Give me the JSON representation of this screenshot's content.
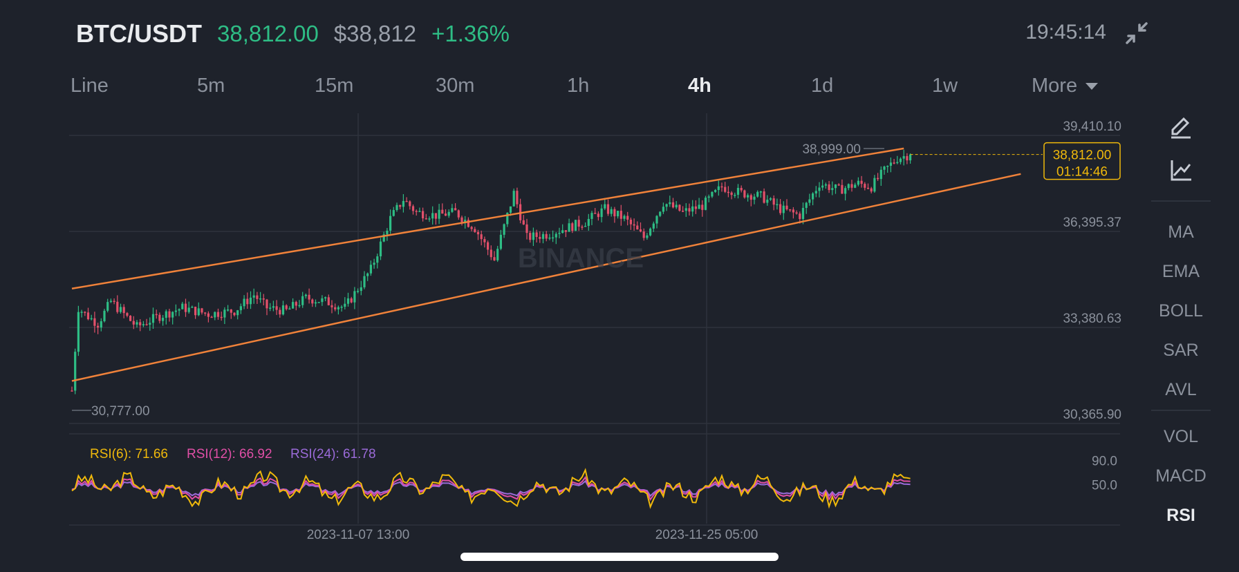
{
  "header": {
    "pair": "BTC/USDT",
    "last_price": "38,812.00",
    "usd_price": "$38,812",
    "change": "+1.36%",
    "time": "19:45:14"
  },
  "tabs": [
    {
      "label": "Line",
      "active": false
    },
    {
      "label": "5m",
      "active": false
    },
    {
      "label": "15m",
      "active": false
    },
    {
      "label": "30m",
      "active": false
    },
    {
      "label": "1h",
      "active": false
    },
    {
      "label": "4h",
      "active": true
    },
    {
      "label": "1d",
      "active": false
    },
    {
      "label": "1w",
      "active": false
    }
  ],
  "more_label": "More",
  "side": {
    "tools": [
      "draw-pen-icon",
      "indicator-chart-icon"
    ],
    "indicators": [
      "MA",
      "EMA",
      "BOLL",
      "SAR",
      "AVL"
    ],
    "sub_indicators": [
      "VOL",
      "MACD",
      "RSI"
    ],
    "active_sub": "RSI"
  },
  "colors": {
    "background": "#1e222b",
    "up": "#2ebd85",
    "down": "#e2506a",
    "trendline": "#f0823a",
    "price_tag": "#f0b90b",
    "rsi6": "#f0b90b",
    "rsi12": "#e04fa6",
    "rsi24": "#9b6bd9"
  },
  "chart_data": {
    "type": "candlestick",
    "y_axis_labels": [
      "39,410.10",
      "36,395.37",
      "33,380.63",
      "30,365.90"
    ],
    "ylim": [
      30365.9,
      39410.1
    ],
    "x_axis_labels": [
      "2023-11-07 13:00",
      "2023-11-25 05:00"
    ],
    "high_marker": "38,999.00",
    "low_marker": "30,777.00",
    "current_price_tag": "38,812.00",
    "countdown": "01:14:46",
    "watermark": "BINANCE",
    "close_path": [
      {
        "i": 0,
        "v": 31400
      },
      {
        "i": 2,
        "v": 34000
      },
      {
        "i": 4,
        "v": 33800
      },
      {
        "i": 8,
        "v": 33500
      },
      {
        "i": 12,
        "v": 34200
      },
      {
        "i": 16,
        "v": 33800
      },
      {
        "i": 20,
        "v": 33400
      },
      {
        "i": 26,
        "v": 33700
      },
      {
        "i": 34,
        "v": 34000
      },
      {
        "i": 42,
        "v": 33800
      },
      {
        "i": 50,
        "v": 33900
      },
      {
        "i": 56,
        "v": 34400
      },
      {
        "i": 60,
        "v": 34000
      },
      {
        "i": 66,
        "v": 33900
      },
      {
        "i": 72,
        "v": 34300
      },
      {
        "i": 78,
        "v": 34200
      },
      {
        "i": 84,
        "v": 34000
      },
      {
        "i": 88,
        "v": 34600
      },
      {
        "i": 92,
        "v": 35200
      },
      {
        "i": 98,
        "v": 36800
      },
      {
        "i": 102,
        "v": 37400
      },
      {
        "i": 106,
        "v": 37000
      },
      {
        "i": 112,
        "v": 36900
      },
      {
        "i": 118,
        "v": 37000
      },
      {
        "i": 124,
        "v": 36500
      },
      {
        "i": 130,
        "v": 35500
      },
      {
        "i": 136,
        "v": 37600
      },
      {
        "i": 140,
        "v": 36200
      },
      {
        "i": 146,
        "v": 36300
      },
      {
        "i": 152,
        "v": 36500
      },
      {
        "i": 158,
        "v": 36700
      },
      {
        "i": 164,
        "v": 37100
      },
      {
        "i": 170,
        "v": 36800
      },
      {
        "i": 176,
        "v": 36200
      },
      {
        "i": 182,
        "v": 37300
      },
      {
        "i": 188,
        "v": 37000
      },
      {
        "i": 194,
        "v": 37200
      },
      {
        "i": 200,
        "v": 37800
      },
      {
        "i": 206,
        "v": 37600
      },
      {
        "i": 212,
        "v": 37500
      },
      {
        "i": 218,
        "v": 37100
      },
      {
        "i": 224,
        "v": 36900
      },
      {
        "i": 230,
        "v": 37900
      },
      {
        "i": 236,
        "v": 37700
      },
      {
        "i": 242,
        "v": 37900
      },
      {
        "i": 246,
        "v": 37800
      },
      {
        "i": 250,
        "v": 38300
      },
      {
        "i": 254,
        "v": 38700
      },
      {
        "i": 258,
        "v": 38812
      }
    ],
    "trendlines": [
      {
        "name": "upper",
        "start": [
          0,
          34600
        ],
        "end": [
          256,
          39000
        ]
      },
      {
        "name": "lower",
        "start": [
          0,
          31700
        ],
        "end": [
          292,
          38200
        ]
      }
    ],
    "rsi": {
      "labels": [
        "RSI(6): 71.66",
        "RSI(12): 66.92",
        "RSI(24): 61.78"
      ],
      "levels": [
        "90.0",
        "50.0"
      ],
      "values": {
        "rsi6": 71.66,
        "rsi12": 66.92,
        "rsi24": 61.78
      }
    }
  }
}
